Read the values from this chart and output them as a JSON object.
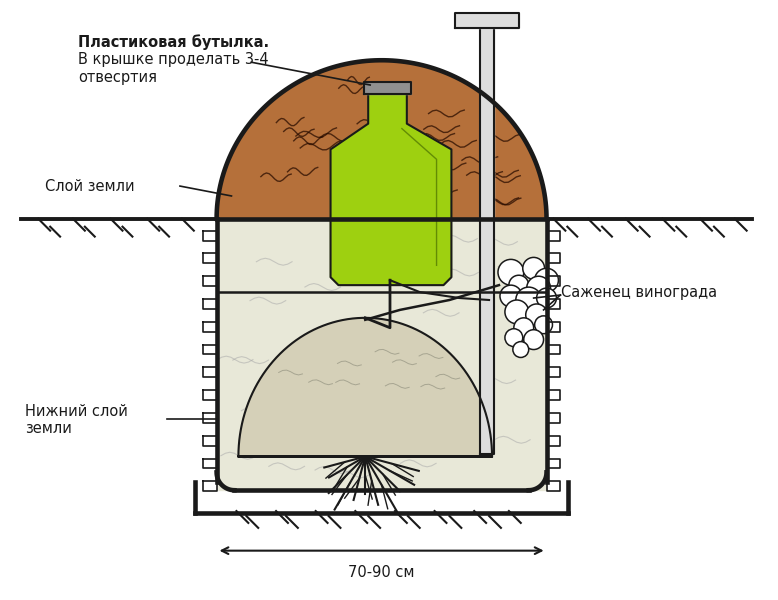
{
  "bg_color": "#ffffff",
  "line_color": "#1a1a1a",
  "soil_upper_color": "#b5703a",
  "soil_lower_color": "#e8e8d8",
  "bottle_color": "#9ed010",
  "bottle_cap_color": "#909090",
  "label_bottle_bold": "Пластиковая бутылка.",
  "label_bottle_rest": "В крышке проделать 3-4\nотвесртия",
  "label_soil_upper": "Слой земли",
  "label_soil_lower": "Нижний слой\nземли",
  "label_sapling": "Саженец винограда",
  "label_dimension": "70-90 см",
  "font_size_main": 10.5,
  "lw_main": 2.8,
  "lw_thin": 1.5
}
